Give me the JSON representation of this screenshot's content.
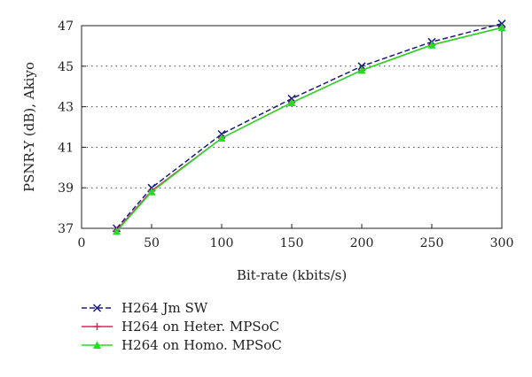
{
  "chart_data": {
    "type": "line",
    "xlabel": "Bit-rate (kbits/s)",
    "ylabel": "PSNR-Y (dB), Akiyo",
    "xlim": [
      0,
      300
    ],
    "ylim": [
      37,
      47
    ],
    "x_ticks": [
      0,
      50,
      100,
      150,
      200,
      250,
      300
    ],
    "y_ticks": [
      37,
      39,
      41,
      43,
      45,
      47
    ],
    "grid": "horizontal dotted",
    "legend_position": "bottom-left below plot",
    "x": [
      25,
      50,
      100,
      150,
      200,
      250,
      300
    ],
    "series": [
      {
        "name": "H264 Jm SW",
        "values": [
          37.0,
          39.0,
          41.65,
          43.4,
          45.0,
          46.2,
          47.1
        ],
        "color": "#1a1a80",
        "dash": "dashed",
        "marker": "x"
      },
      {
        "name": "H264 on Heter. MPSoC",
        "values": [
          36.9,
          38.85,
          41.45,
          43.2,
          44.8,
          46.05,
          46.9
        ],
        "color": "#e0245e",
        "dash": "solid",
        "marker": "plus"
      },
      {
        "name": "H264 on Homo. MPSoC",
        "values": [
          36.85,
          38.8,
          41.45,
          43.2,
          44.8,
          46.05,
          46.9
        ],
        "color": "#22dd22",
        "dash": "solid",
        "marker": "triangle"
      }
    ]
  }
}
